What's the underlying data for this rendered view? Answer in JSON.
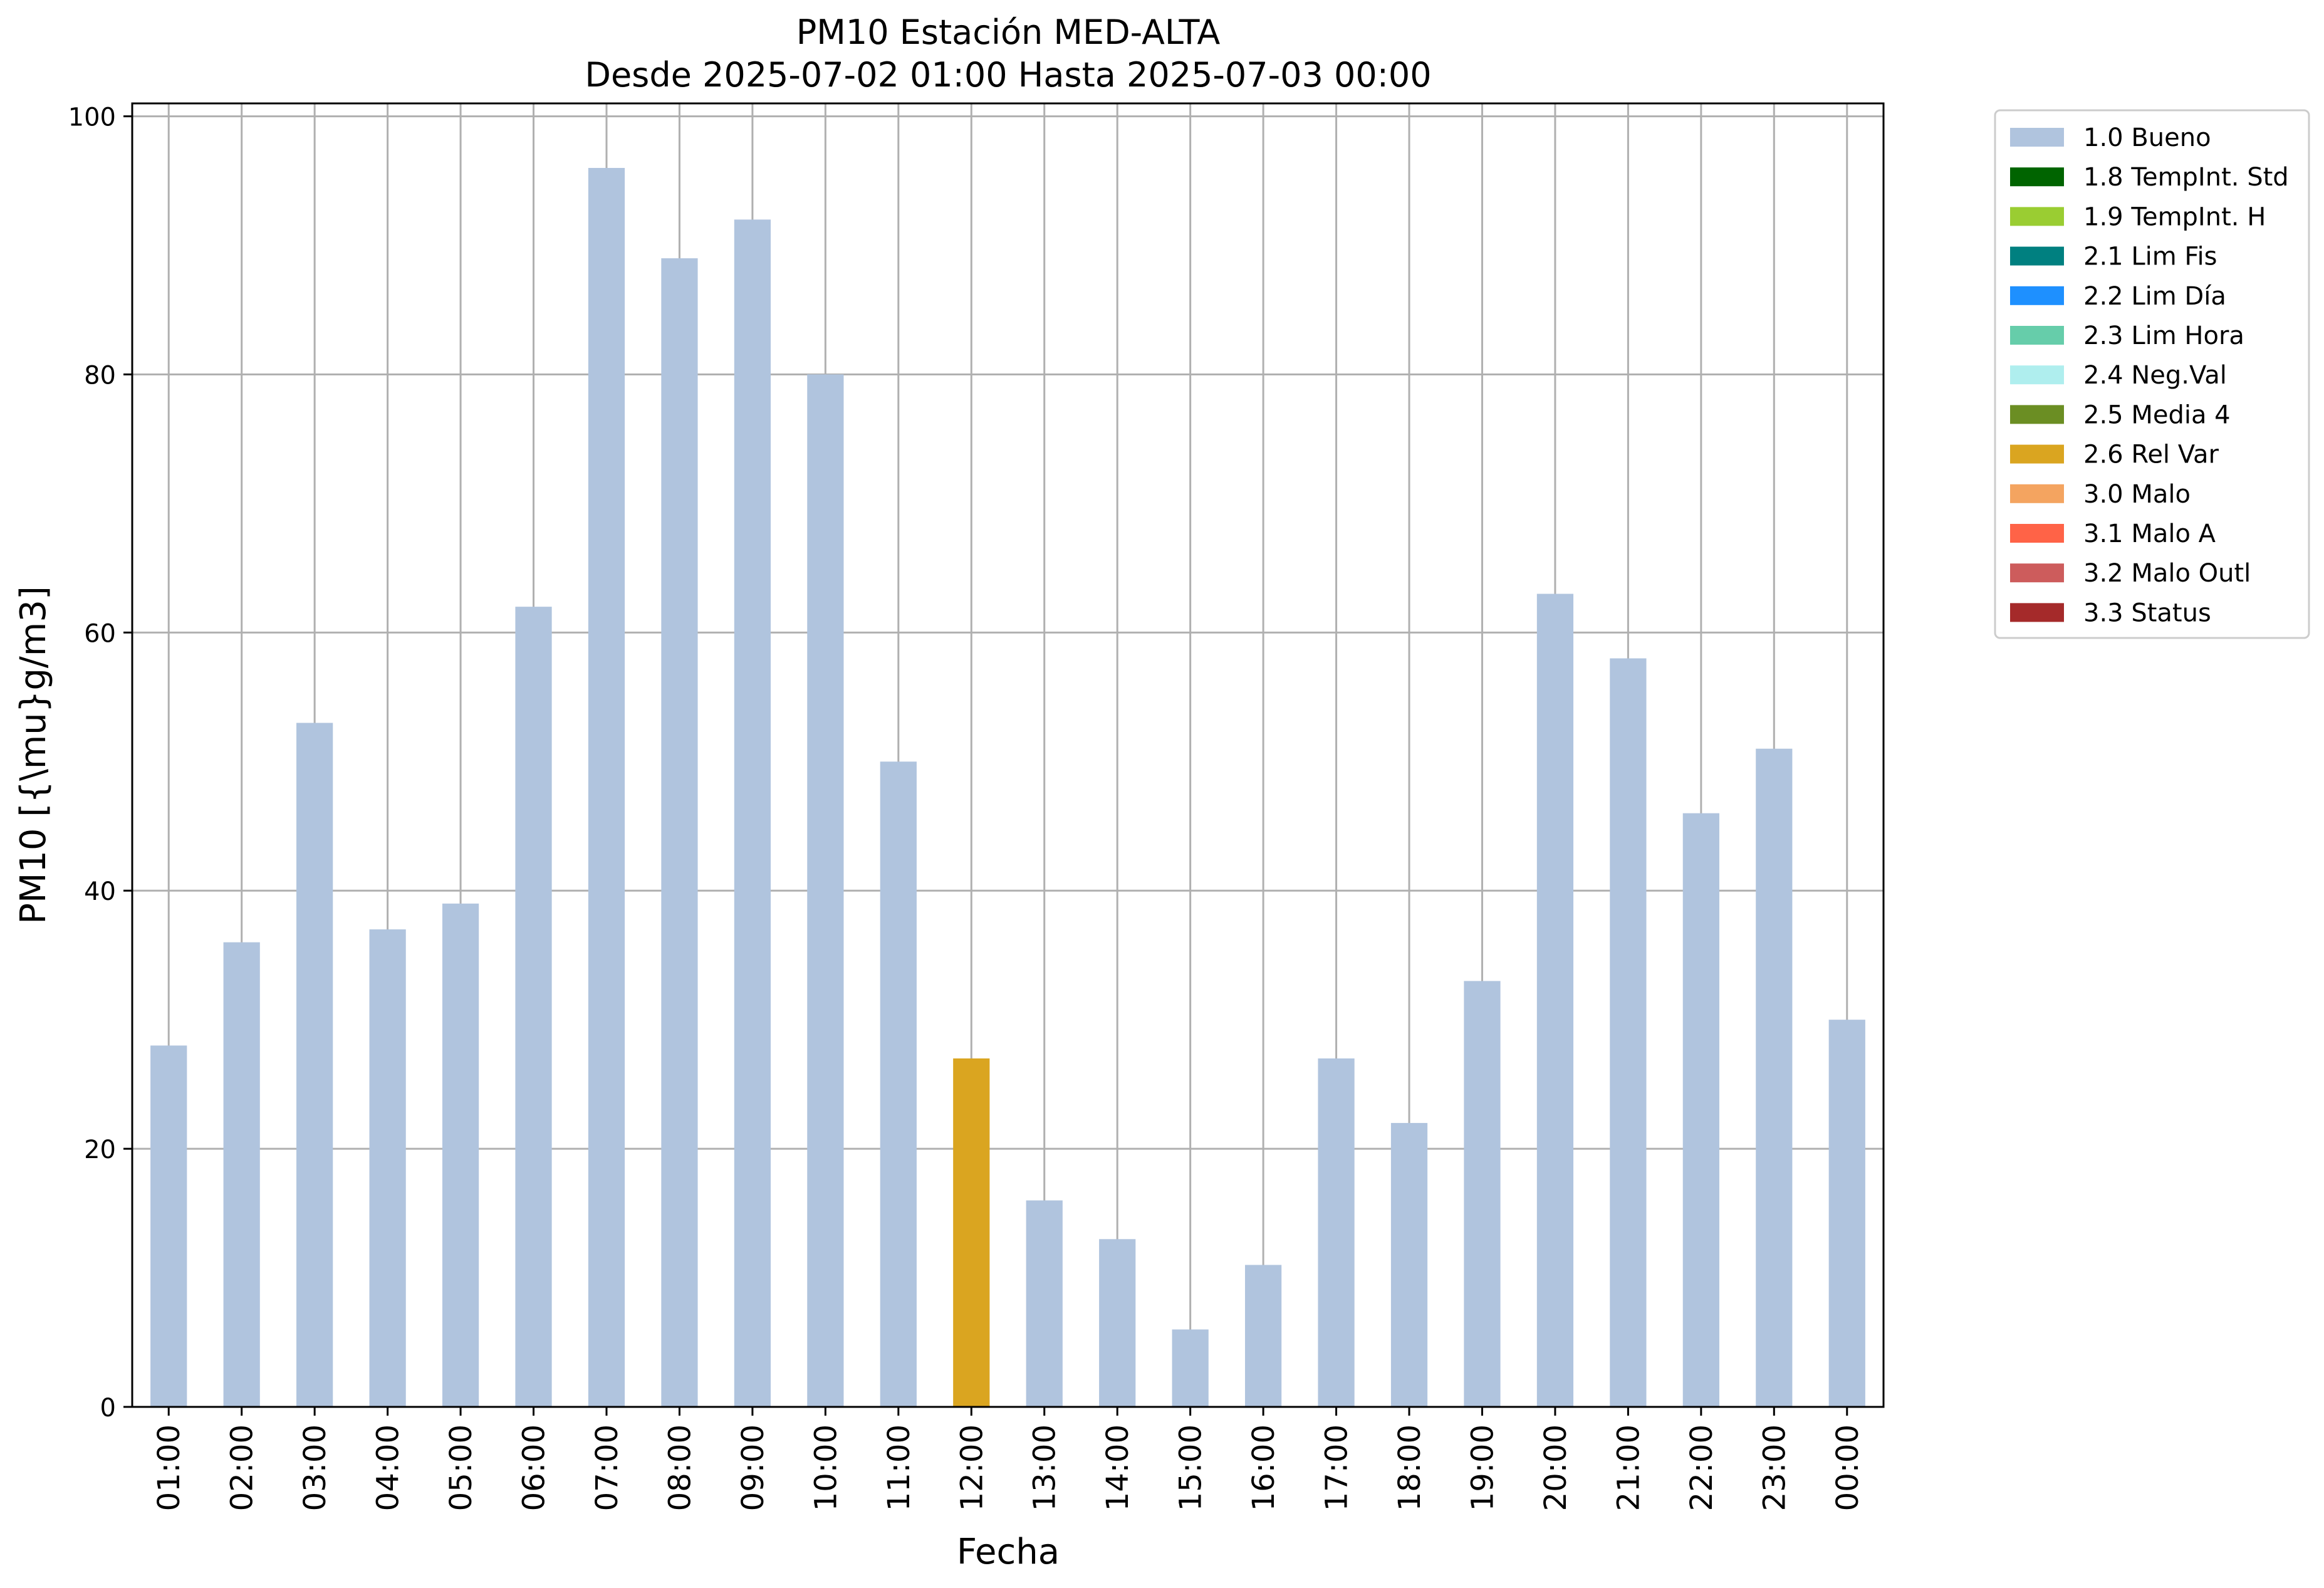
{
  "chart_data": {
    "type": "bar",
    "title": "PM10 Estación MED-ALTA",
    "subtitle": "Desde 2025-07-02 01:00 Hasta 2025-07-03 00:00",
    "xlabel": "Fecha",
    "ylabel": "PM10 [{\\mu}g/m3]",
    "ylim": [
      0,
      101
    ],
    "yticks": [
      0,
      20,
      40,
      60,
      80,
      100
    ],
    "grid": true,
    "legend_position": "outside-top-right",
    "categories": [
      "01:00",
      "02:00",
      "03:00",
      "04:00",
      "05:00",
      "06:00",
      "07:00",
      "08:00",
      "09:00",
      "10:00",
      "11:00",
      "12:00",
      "13:00",
      "14:00",
      "15:00",
      "16:00",
      "17:00",
      "18:00",
      "19:00",
      "20:00",
      "21:00",
      "22:00",
      "23:00",
      "00:00"
    ],
    "values": [
      28,
      36,
      53,
      37,
      39,
      62,
      96,
      89,
      92,
      80,
      50,
      27,
      16,
      13,
      6,
      11,
      27,
      22,
      33,
      63,
      58,
      46,
      51,
      30
    ],
    "flags": [
      "1.0 Bueno",
      "1.0 Bueno",
      "1.0 Bueno",
      "1.0 Bueno",
      "1.0 Bueno",
      "1.0 Bueno",
      "1.0 Bueno",
      "1.0 Bueno",
      "1.0 Bueno",
      "1.0 Bueno",
      "1.0 Bueno",
      "2.6 Rel Var",
      "1.0 Bueno",
      "1.0 Bueno",
      "1.0 Bueno",
      "1.0 Bueno",
      "1.0 Bueno",
      "1.0 Bueno",
      "1.0 Bueno",
      "1.0 Bueno",
      "1.0 Bueno",
      "1.0 Bueno",
      "1.0 Bueno",
      "1.0 Bueno"
    ],
    "legend": [
      {
        "label": "1.0 Bueno",
        "color": "#b0c4de"
      },
      {
        "label": "1.8 TempInt. Std",
        "color": "#006400"
      },
      {
        "label": "1.9 TempInt. H",
        "color": "#9acd32"
      },
      {
        "label": "2.1 Lim Fis",
        "color": "#008080"
      },
      {
        "label": "2.2 Lim Día",
        "color": "#1e90ff"
      },
      {
        "label": "2.3 Lim Hora",
        "color": "#66cdaa"
      },
      {
        "label": "2.4 Neg.Val",
        "color": "#afeeee"
      },
      {
        "label": "2.5 Media 4",
        "color": "#6b8e23"
      },
      {
        "label": "2.6 Rel Var",
        "color": "#daa520"
      },
      {
        "label": "3.0 Malo",
        "color": "#f4a460"
      },
      {
        "label": "3.1 Malo A",
        "color": "#ff6347"
      },
      {
        "label": "3.2 Malo Outl",
        "color": "#cd5c5c"
      },
      {
        "label": "3.3 Status",
        "color": "#a52a2a"
      }
    ]
  }
}
